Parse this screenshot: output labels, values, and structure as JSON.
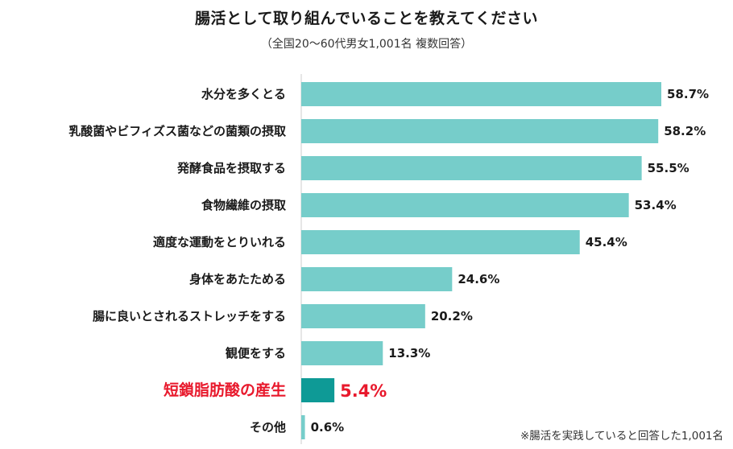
{
  "title": "腸活として取り組んでいることを教えてください",
  "subtitle": "（全国20〜60代男女1,001名 複数回答）",
  "note": "※腸活を実践していると回答した1,001名",
  "colors": {
    "bar": "#76cdca",
    "highlight_bar": "#0e9a96",
    "highlight_text": "#e8192c",
    "axis": "#cccccc"
  },
  "chart_data": {
    "type": "bar",
    "orientation": "horizontal",
    "title": "腸活として取り組んでいることを教えてください",
    "unit": "%",
    "xlim": [
      0,
      60
    ],
    "highlight_index": 8,
    "categories": [
      "水分を多くとる",
      "乳酸菌やビフィズス菌などの菌類の摂取",
      "発酵食品を摂取する",
      "食物繊維の摂取",
      "適度な運動をとりいれる",
      "身体をあたためる",
      "腸に良いとされるストレッチをする",
      "観便をする",
      "短鎖脂肪酸の産生",
      "その他"
    ],
    "values": [
      58.7,
      58.2,
      55.5,
      53.4,
      45.4,
      24.6,
      20.2,
      13.3,
      5.4,
      0.6
    ],
    "value_labels": [
      "58.7%",
      "58.2%",
      "55.5%",
      "53.4%",
      "45.4%",
      "24.6%",
      "20.2%",
      "13.3%",
      "5.4%",
      "0.6%"
    ]
  }
}
